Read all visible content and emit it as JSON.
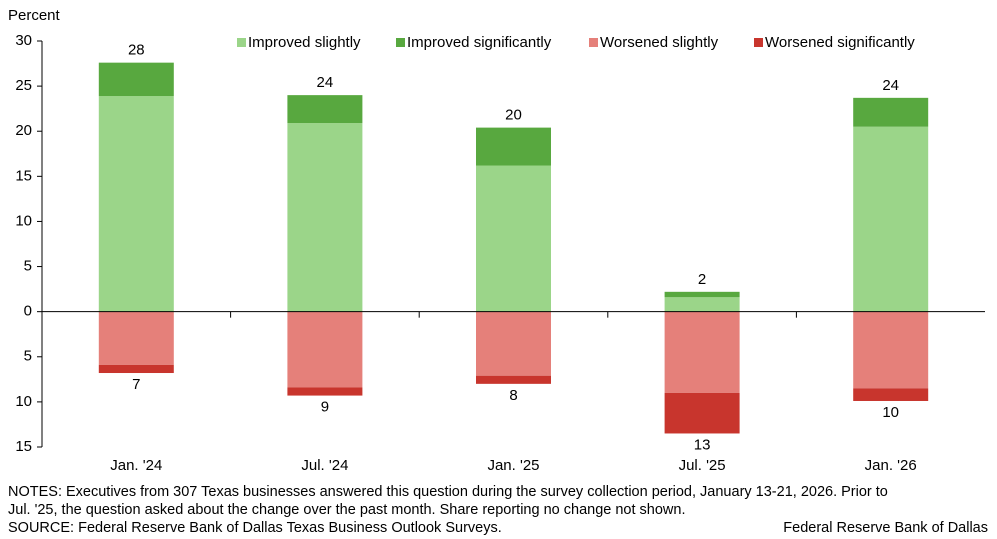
{
  "chart_data": {
    "type": "bar",
    "stacked": true,
    "ylabel": "Percent",
    "categories": [
      "Jan. '24",
      "Jul. '24",
      "Jan. '25",
      "Jul. '25",
      "Jan. '26"
    ],
    "series": [
      {
        "name": "Improved slightly",
        "color": "#9bd589",
        "values": [
          23.9,
          20.9,
          16.2,
          1.6,
          20.5
        ]
      },
      {
        "name": "Improved significantly",
        "color": "#58a83f",
        "values": [
          3.7,
          3.1,
          4.2,
          0.6,
          3.2
        ]
      },
      {
        "name": "Worsened slightly",
        "color": "#e5807a",
        "values": [
          -5.9,
          -8.4,
          -7.1,
          -9.0,
          -8.5
        ]
      },
      {
        "name": "Worsened significantly",
        "color": "#c8352d",
        "values": [
          -0.9,
          -0.9,
          -0.9,
          -4.5,
          -1.4
        ]
      }
    ],
    "improved_totals": [
      28,
      24,
      20,
      2,
      24
    ],
    "worsened_totals": [
      7,
      9,
      8,
      13,
      10
    ],
    "ylim": [
      -15,
      30
    ],
    "yticks": [
      {
        "value": -15,
        "label": "15"
      },
      {
        "value": -10,
        "label": "10"
      },
      {
        "value": -5,
        "label": "5"
      },
      0,
      5,
      10,
      15,
      20,
      25,
      30
    ],
    "notes": "NOTES: Executives from 307 Texas businesses answered this question during the survey collection period, January 13-21, 2026. Prior to",
    "notes_line2": "Jul. '25, the question asked about the change over the past month. Share reporting no change not shown.",
    "source": "SOURCE: Federal Reserve Bank of Dallas Texas Business Outlook Surveys.",
    "credit": "Federal Reserve Bank of Dallas"
  }
}
